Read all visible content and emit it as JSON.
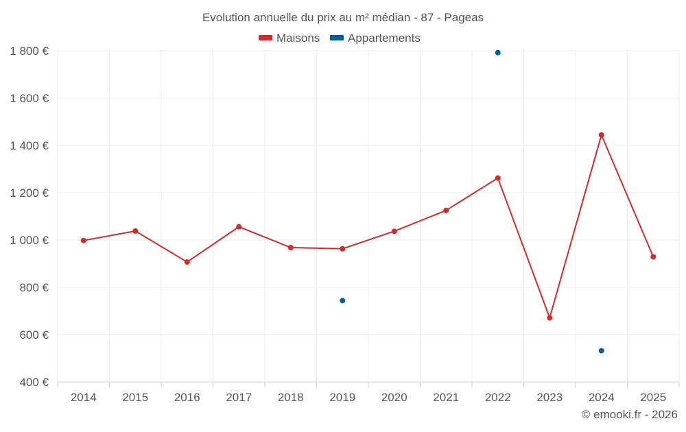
{
  "colors": {
    "maisons": "#d32a2a",
    "appartements": "#005f99",
    "grid": "#ececec",
    "text": "#555555",
    "axis": "#d0d0d0"
  },
  "chart_data": {
    "type": "line",
    "title": "Evolution annuelle du prix au m² médian - 87 - Pageas",
    "categories": [
      "2014",
      "2015",
      "2016",
      "2017",
      "2018",
      "2019",
      "2020",
      "2021",
      "2022",
      "2023",
      "2024",
      "2025"
    ],
    "ylim": [
      400,
      1800
    ],
    "yticks": [
      400,
      600,
      800,
      1000,
      1200,
      1400,
      1600,
      1800
    ],
    "ytick_labels": [
      "400 €",
      "600 €",
      "800 €",
      "1 000 €",
      "1 200 €",
      "1 400 €",
      "1 600 €",
      "1 800 €"
    ],
    "series": [
      {
        "name": "Maisons",
        "style": "line",
        "values": [
          998,
          1038,
          907,
          1056,
          968,
          963,
          1037,
          1125,
          1262,
          671,
          1444,
          929
        ]
      },
      {
        "name": "Appartements",
        "style": "scatter",
        "values": [
          null,
          null,
          null,
          null,
          null,
          744,
          null,
          null,
          1792,
          null,
          532,
          null
        ]
      }
    ],
    "legend_position": "top-center",
    "grid": true
  },
  "footer": {
    "credit": "© emooki.fr - 2026"
  }
}
